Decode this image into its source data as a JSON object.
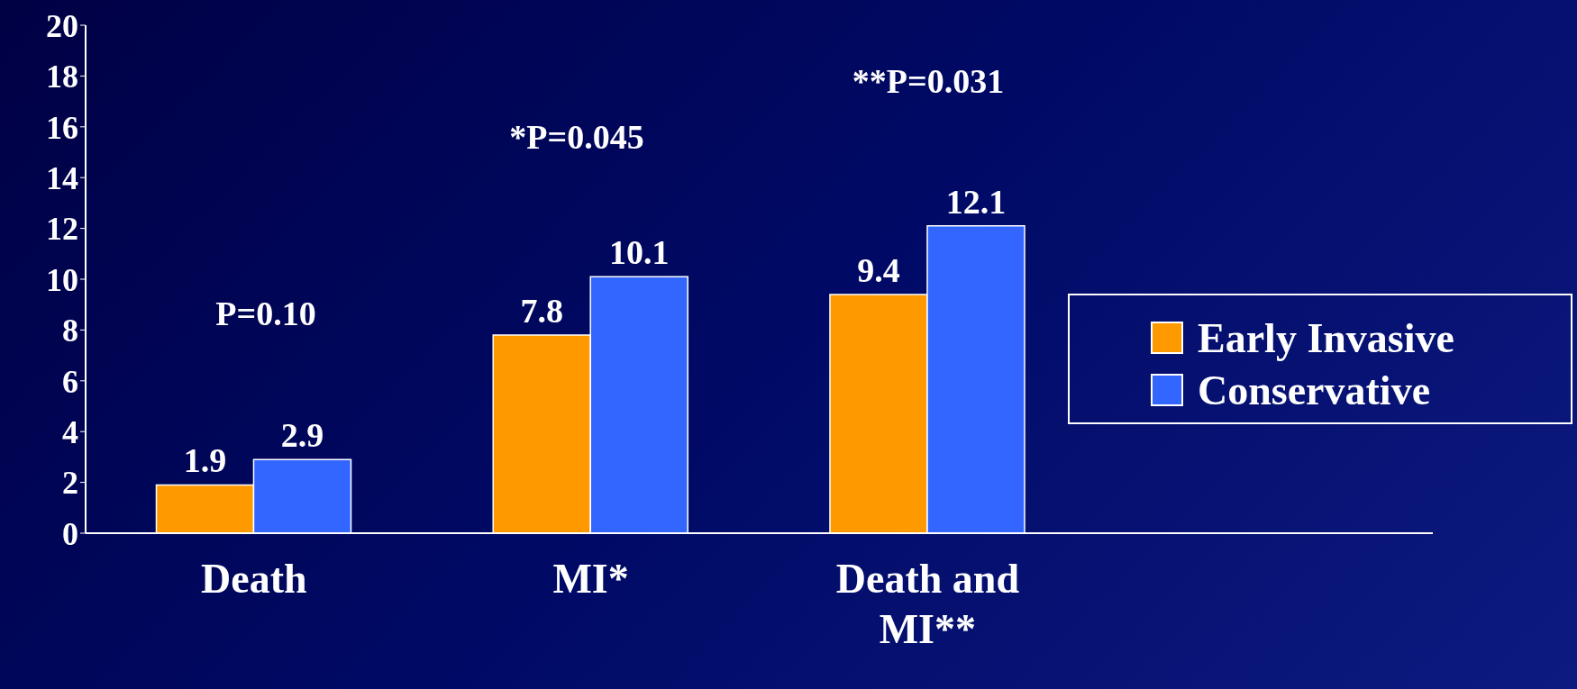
{
  "chart_data": {
    "type": "bar",
    "categories": [
      "Death",
      "MI*",
      "Death and MI**",
      null
    ],
    "series": [
      {
        "name": "Early Invasive",
        "color": "#ff9900",
        "values": [
          1.9,
          7.8,
          9.4,
          null
        ]
      },
      {
        "name": "Conservative",
        "color": "#3366ff",
        "values": [
          2.9,
          10.1,
          12.1,
          null
        ]
      }
    ],
    "ylim": [
      0,
      20
    ],
    "yticks": [
      0,
      2,
      4,
      6,
      8,
      10,
      12,
      14,
      16,
      18,
      20
    ],
    "data_labels": true,
    "legend": "right",
    "grid": false,
    "annotations": [
      "P=0.10",
      "*P=0.045",
      "**P=0.031"
    ]
  }
}
